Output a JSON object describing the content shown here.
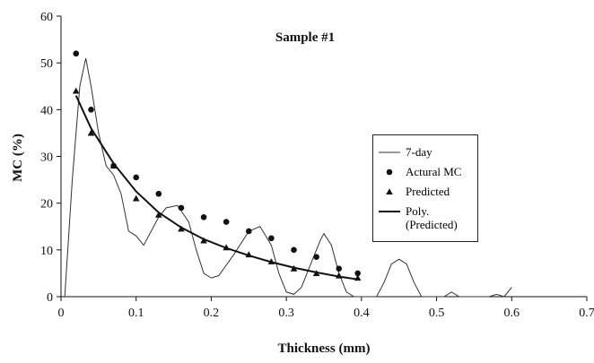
{
  "chart_data": {
    "type": "line",
    "title": "Sample #1",
    "x_label": "Thickness (mm)",
    "y_label": "MC (%)",
    "xlim": [
      0,
      0.7
    ],
    "ylim": [
      0,
      60
    ],
    "xticks": [
      0,
      0.1,
      0.2,
      0.3,
      0.4,
      0.5,
      0.6,
      0.7
    ],
    "yticks": [
      0,
      10,
      20,
      30,
      40,
      50,
      60
    ],
    "series": [
      {
        "name": "7-day",
        "color": "#333333",
        "style": "line",
        "x": [
          0.005,
          0.015,
          0.025,
          0.033,
          0.04,
          0.05,
          0.06,
          0.07,
          0.08,
          0.09,
          0.1,
          0.11,
          0.12,
          0.13,
          0.14,
          0.155,
          0.17,
          0.18,
          0.19,
          0.2,
          0.21,
          0.23,
          0.25,
          0.265,
          0.28,
          0.29,
          0.3,
          0.31,
          0.32,
          0.33,
          0.345,
          0.35,
          0.36,
          0.37,
          0.38,
          0.39,
          0.42,
          0.43,
          0.44,
          0.45,
          0.46,
          0.47,
          0.48,
          0.51,
          0.52,
          0.53,
          0.57,
          0.58,
          0.59,
          0.6
        ],
        "values": [
          0,
          25,
          45,
          51,
          45,
          35,
          28,
          26,
          22,
          14,
          13,
          11,
          14,
          17,
          19,
          19.5,
          16,
          10,
          5,
          4,
          4.5,
          9,
          14,
          15,
          11,
          5,
          1,
          0.5,
          2,
          6,
          12,
          13.5,
          11,
          5,
          1,
          0,
          0,
          3,
          7,
          8,
          7,
          3,
          0,
          0,
          1,
          0,
          0,
          0.5,
          0,
          2
        ]
      },
      {
        "name": "Actural MC",
        "color": "#111111",
        "style": "circle",
        "x": [
          0.02,
          0.04,
          0.07,
          0.1,
          0.13,
          0.16,
          0.19,
          0.22,
          0.25,
          0.28,
          0.31,
          0.34,
          0.37,
          0.395
        ],
        "values": [
          52,
          40,
          28,
          25.5,
          22,
          19,
          17,
          16,
          14,
          12.5,
          10,
          8.5,
          6,
          5
        ]
      },
      {
        "name": "Predicted",
        "color": "#111111",
        "style": "triangle",
        "x": [
          0.02,
          0.04,
          0.07,
          0.1,
          0.13,
          0.16,
          0.19,
          0.22,
          0.25,
          0.28,
          0.31,
          0.34,
          0.37,
          0.395
        ],
        "values": [
          44,
          35,
          28,
          21,
          17.5,
          14.5,
          12,
          10.5,
          9,
          7.5,
          6,
          5,
          4.5,
          4
        ]
      },
      {
        "name": "Poly. (Predicted)",
        "color": "#111111",
        "style": "thick",
        "x": [
          0.02,
          0.04,
          0.07,
          0.1,
          0.13,
          0.16,
          0.19,
          0.22,
          0.25,
          0.28,
          0.31,
          0.34,
          0.37,
          0.395
        ],
        "values": [
          43,
          36,
          28.5,
          22.5,
          18,
          14.8,
          12.3,
          10.4,
          8.8,
          7.4,
          6.2,
          5.2,
          4.3,
          3.7
        ]
      }
    ]
  }
}
